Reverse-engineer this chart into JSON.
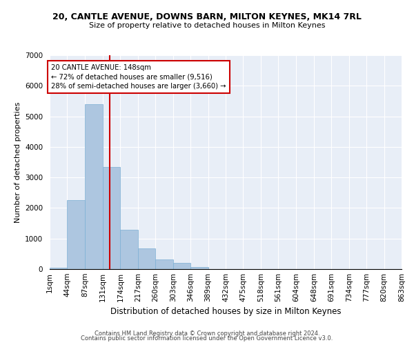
{
  "title1": "20, CANTLE AVENUE, DOWNS BARN, MILTON KEYNES, MK14 7RL",
  "title2": "Size of property relative to detached houses in Milton Keynes",
  "xlabel": "Distribution of detached houses by size in Milton Keynes",
  "ylabel": "Number of detached properties",
  "footer1": "Contains HM Land Registry data © Crown copyright and database right 2024.",
  "footer2": "Contains public sector information licensed under the Open Government Licence v3.0.",
  "annotation_line1": "20 CANTLE AVENUE: 148sqm",
  "annotation_line2": "← 72% of detached houses are smaller (9,516)",
  "annotation_line3": "28% of semi-detached houses are larger (3,660) →",
  "property_size": 148,
  "bar_color": "#adc6e0",
  "bar_edge_color": "#7bafd4",
  "vline_color": "#cc0000",
  "annotation_box_color": "#cc0000",
  "background_color": "#e8eef7",
  "bin_edges": [
    1,
    44,
    87,
    131,
    174,
    217,
    260,
    303,
    346,
    389,
    432,
    475,
    518,
    561,
    604,
    648,
    691,
    734,
    777,
    820,
    863
  ],
  "bin_labels": [
    "1sqm",
    "44sqm",
    "87sqm",
    "131sqm",
    "174sqm",
    "217sqm",
    "260sqm",
    "303sqm",
    "346sqm",
    "389sqm",
    "432sqm",
    "475sqm",
    "518sqm",
    "561sqm",
    "604sqm",
    "648sqm",
    "691sqm",
    "734sqm",
    "777sqm",
    "820sqm",
    "863sqm"
  ],
  "bar_heights": [
    50,
    2250,
    5400,
    3350,
    1280,
    680,
    310,
    200,
    70,
    10,
    0,
    0,
    0,
    0,
    0,
    0,
    0,
    0,
    0,
    0
  ],
  "ylim": [
    0,
    7000
  ],
  "yticks": [
    0,
    1000,
    2000,
    3000,
    4000,
    5000,
    6000,
    7000
  ],
  "title1_fontsize": 9.0,
  "title2_fontsize": 8.0,
  "ylabel_fontsize": 8.0,
  "xlabel_fontsize": 8.5,
  "tick_fontsize": 7.5,
  "footer_fontsize": 6.0
}
